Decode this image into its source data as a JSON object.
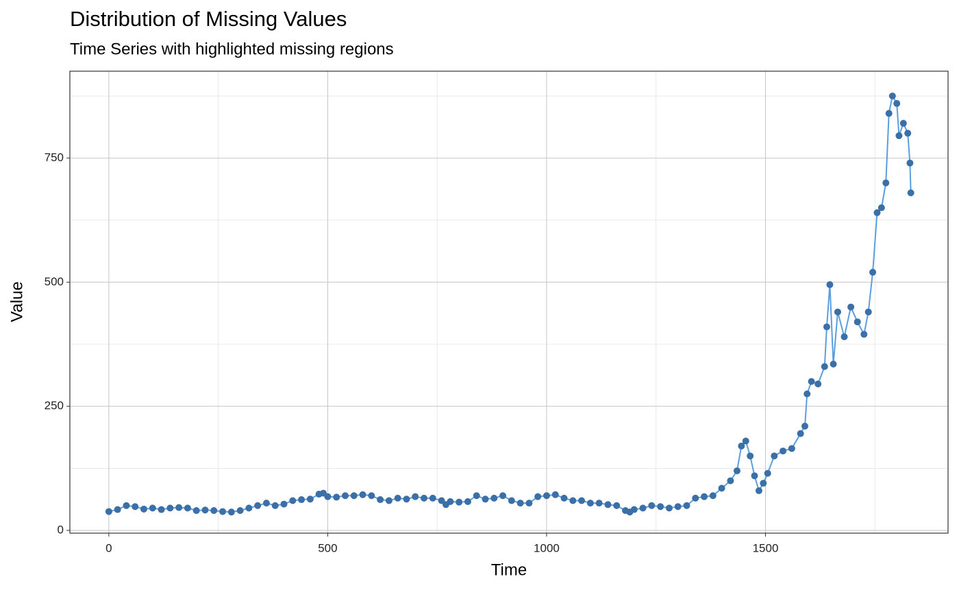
{
  "chart_data": {
    "type": "line",
    "title": "Distribution of Missing Values",
    "subtitle": "Time Series with highlighted missing regions",
    "x_label": "Time",
    "y_label": "Value",
    "x": [
      0,
      20,
      40,
      60,
      80,
      100,
      120,
      140,
      160,
      180,
      200,
      220,
      240,
      260,
      280,
      300,
      320,
      340,
      360,
      380,
      400,
      420,
      440,
      460,
      480,
      490,
      500,
      520,
      540,
      560,
      580,
      600,
      620,
      640,
      660,
      680,
      700,
      720,
      740,
      760,
      770,
      780,
      800,
      820,
      840,
      860,
      880,
      900,
      920,
      940,
      960,
      980,
      1000,
      1020,
      1040,
      1060,
      1080,
      1100,
      1120,
      1140,
      1160,
      1180,
      1190,
      1200,
      1220,
      1240,
      1260,
      1280,
      1300,
      1320,
      1340,
      1360,
      1380,
      1400,
      1420,
      1435,
      1445,
      1455,
      1465,
      1475,
      1485,
      1495,
      1505,
      1520,
      1540,
      1560,
      1580,
      1590,
      1595,
      1605,
      1620,
      1635,
      1640,
      1647,
      1655,
      1665,
      1680,
      1695,
      1710,
      1725,
      1735,
      1745,
      1755,
      1765,
      1775,
      1782,
      1790,
      1800,
      1805,
      1815,
      1825,
      1830,
      1832
    ],
    "values": [
      38,
      42,
      50,
      48,
      43,
      45,
      42,
      45,
      46,
      45,
      40,
      41,
      40,
      38,
      37,
      40,
      45,
      50,
      55,
      50,
      53,
      60,
      62,
      63,
      73,
      75,
      68,
      67,
      70,
      70,
      72,
      70,
      62,
      60,
      65,
      63,
      68,
      65,
      65,
      60,
      52,
      58,
      57,
      58,
      70,
      63,
      65,
      70,
      60,
      55,
      55,
      68,
      70,
      72,
      65,
      60,
      60,
      55,
      55,
      52,
      50,
      40,
      37,
      42,
      45,
      50,
      48,
      45,
      48,
      50,
      65,
      68,
      70,
      85,
      100,
      120,
      170,
      180,
      150,
      110,
      80,
      95,
      115,
      150,
      160,
      165,
      195,
      210,
      275,
      300,
      295,
      330,
      410,
      495,
      335,
      440,
      390,
      450,
      420,
      395,
      440,
      520,
      640,
      650,
      700,
      840,
      875,
      860,
      795,
      820,
      800,
      740,
      680
    ],
    "line_color": "#5a9ee0",
    "point_color": "#3a6fa8",
    "xlim": [
      -89,
      1917
    ],
    "ylim": [
      -5.5,
      925
    ],
    "xticks": [
      0,
      500,
      1000,
      1500
    ],
    "yticks": [
      0,
      250,
      500,
      750
    ],
    "x_minor_grid": [
      250,
      750,
      1250,
      1750
    ],
    "y_minor_grid": [
      125,
      375,
      625,
      875
    ],
    "grid": true
  }
}
